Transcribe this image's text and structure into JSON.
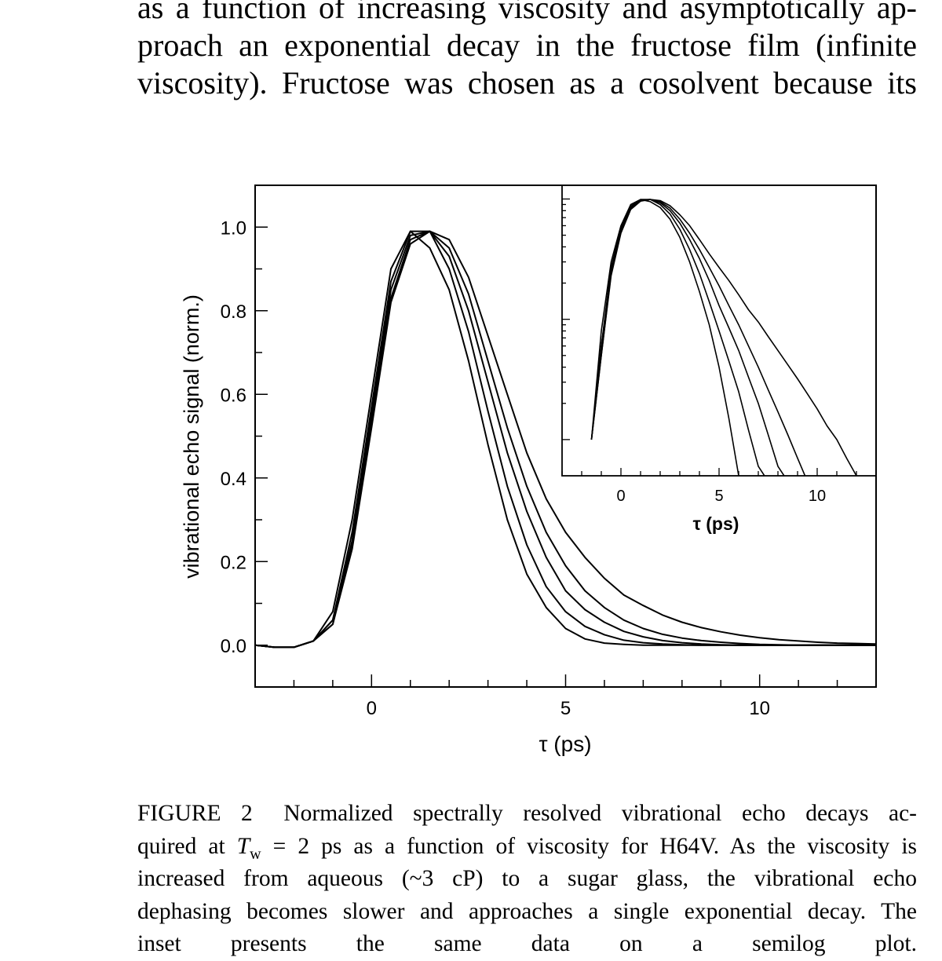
{
  "body_text": {
    "lines": [
      "as a function of increasing viscosity and asymptotically ap-",
      "proach an exponential decay in the fructose film (infinite",
      "viscosity). Fructose was chosen as a cosolvent because its"
    ]
  },
  "caption": {
    "label": "FIGURE 2",
    "line1": "Normalized spectrally resolved vibrational echo decays ac-",
    "line2_pre": "quired at ",
    "line2_T": "T",
    "line2_sub": "w",
    "line2_post": " = 2 ps as a function of viscosity for H64V. As the viscosity is",
    "line3": "increased from aqueous (~3 cP) to a sugar glass, the vibrational echo",
    "line4": "dephasing becomes slower and approaches a single exponential decay. The",
    "line5": "inset presents the same data on a semilog plot."
  },
  "chart_data": [
    {
      "type": "line",
      "panel": "main",
      "xlabel": "τ (ps)",
      "ylabel": "vibrational echo signal (norm.)",
      "xlim": [
        -3,
        13
      ],
      "ylim": [
        -0.1,
        1.1
      ],
      "x_tick_labels": [
        "0",
        "5",
        "10"
      ],
      "x_tick_values": [
        0,
        5,
        10
      ],
      "y_tick_labels": [
        "0.0",
        "0.2",
        "0.4",
        "0.6",
        "0.8",
        "1.0"
      ],
      "y_tick_values": [
        0,
        0.2,
        0.4,
        0.6,
        0.8,
        1.0
      ],
      "grid": false,
      "line_color": "#000000",
      "x": [
        -3,
        -2.5,
        -2,
        -1.5,
        -1,
        -0.5,
        0,
        0.5,
        1,
        1.5,
        2,
        2.5,
        3,
        3.5,
        4,
        4.5,
        5,
        5.5,
        6,
        6.5,
        7,
        7.5,
        8,
        8.5,
        9,
        9.5,
        10,
        10.5,
        11,
        11.5,
        12,
        12.5,
        13
      ],
      "series": [
        {
          "values": [
            0,
            -0.005,
            -0.005,
            0.01,
            0.08,
            0.3,
            0.6,
            0.9,
            0.99,
            0.95,
            0.85,
            0.68,
            0.48,
            0.3,
            0.17,
            0.09,
            0.04,
            0.015,
            0.005,
            0.002,
            0,
            0,
            0,
            0,
            0,
            0,
            0,
            0,
            0,
            0,
            0,
            0,
            0
          ]
        },
        {
          "values": [
            0,
            -0.005,
            -0.005,
            0.01,
            0.06,
            0.27,
            0.57,
            0.87,
            0.99,
            0.99,
            0.9,
            0.75,
            0.56,
            0.38,
            0.24,
            0.14,
            0.08,
            0.045,
            0.025,
            0.012,
            0.006,
            0.003,
            0.001,
            0,
            0,
            0,
            0,
            0,
            0,
            0,
            0,
            0,
            0
          ]
        },
        {
          "values": [
            0,
            -0.005,
            -0.005,
            0.01,
            0.06,
            0.25,
            0.55,
            0.85,
            0.98,
            0.99,
            0.93,
            0.8,
            0.63,
            0.46,
            0.32,
            0.21,
            0.13,
            0.085,
            0.055,
            0.033,
            0.02,
            0.011,
            0.006,
            0.003,
            0.001,
            0,
            0,
            0,
            0,
            0,
            0,
            0,
            0
          ]
        },
        {
          "values": [
            0,
            -0.005,
            -0.005,
            0.01,
            0.05,
            0.24,
            0.53,
            0.83,
            0.97,
            0.99,
            0.95,
            0.84,
            0.68,
            0.52,
            0.38,
            0.27,
            0.19,
            0.13,
            0.09,
            0.06,
            0.04,
            0.026,
            0.017,
            0.011,
            0.007,
            0.004,
            0.002,
            0.001,
            0,
            0,
            0,
            0,
            0
          ]
        },
        {
          "values": [
            0,
            -0.005,
            -0.005,
            0.01,
            0.05,
            0.23,
            0.52,
            0.82,
            0.96,
            0.99,
            0.97,
            0.88,
            0.74,
            0.6,
            0.46,
            0.35,
            0.27,
            0.21,
            0.16,
            0.12,
            0.095,
            0.072,
            0.055,
            0.042,
            0.032,
            0.024,
            0.018,
            0.013,
            0.01,
            0.007,
            0.005,
            0.004,
            0.003
          ]
        }
      ]
    },
    {
      "type": "line",
      "panel": "inset",
      "xlabel": "τ (ps)",
      "y_scale": "log",
      "xlim": [
        -3,
        13
      ],
      "ylim": [
        0.005,
        1.3
      ],
      "x_tick_labels": [
        "0",
        "5",
        "10"
      ],
      "x_tick_values": [
        0,
        5,
        10
      ],
      "y_tick_labels": [],
      "grid": false,
      "line_color": "#000000",
      "same_data_as": "main"
    }
  ]
}
